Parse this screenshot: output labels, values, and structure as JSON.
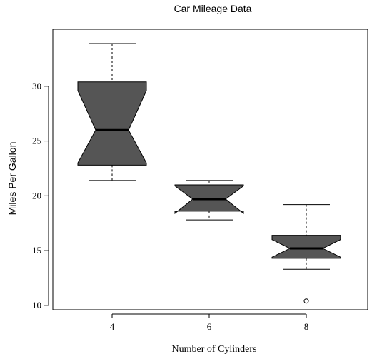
{
  "chart_data": {
    "type": "boxplot",
    "notched": true,
    "title": "Car Mileage Data",
    "xlabel": "Number of Cylinders",
    "ylabel": "Miles Per Gallon",
    "ylim": [
      9.6,
      35.2
    ],
    "yticks": [
      10,
      15,
      20,
      25,
      30
    ],
    "categories": [
      "4",
      "6",
      "8"
    ],
    "box_color": "#555555",
    "boxes": [
      {
        "category": "4",
        "whisker_low": 21.4,
        "q1": 22.8,
        "median": 26.0,
        "q3": 30.4,
        "whisker_high": 33.9,
        "notch_low": 23.0,
        "notch_high": 29.6,
        "outliers": []
      },
      {
        "category": "6",
        "whisker_low": 17.8,
        "q1": 18.6,
        "median": 19.7,
        "q3": 21.0,
        "whisker_high": 21.4,
        "notch_low": 18.4,
        "notch_high": 20.9,
        "outliers": []
      },
      {
        "category": "8",
        "whisker_low": 13.3,
        "q1": 14.3,
        "median": 15.2,
        "q3": 16.4,
        "whisker_high": 19.2,
        "notch_low": 14.4,
        "notch_high": 16.0,
        "outliers": [
          10.4
        ]
      }
    ]
  }
}
